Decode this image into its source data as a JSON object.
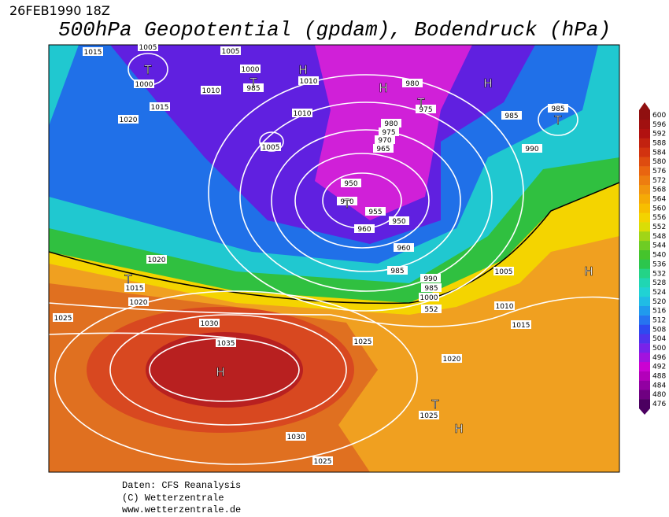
{
  "header": {
    "date": "26FEB1990 18Z",
    "title": "500hPa Geopotential (gpdam), Bodendruck (hPa)"
  },
  "legend": {
    "values": [
      476,
      480,
      484,
      488,
      492,
      496,
      500,
      504,
      508,
      512,
      516,
      520,
      524,
      528,
      532,
      536,
      540,
      544,
      548,
      552,
      556,
      560,
      564,
      568,
      572,
      576,
      580,
      584,
      588,
      592,
      596,
      600
    ]
  },
  "map": {
    "pressure_labels": [
      "1015",
      "1005",
      "1005",
      "1000",
      "1000",
      "985",
      "1010",
      "1010",
      "1015",
      "1020",
      "1010",
      "1005",
      "980",
      "975",
      "985",
      "985",
      "990",
      "980",
      "975",
      "970",
      "965",
      "950",
      "970",
      "955",
      "950",
      "960",
      "960",
      "985",
      "990",
      "985",
      "1000",
      "552",
      "1005",
      "1010",
      "1015",
      "1020",
      "1015",
      "1020",
      "1025",
      "1030",
      "1035",
      "1025",
      "1020",
      "1025",
      "1030",
      "1025"
    ],
    "centers": [
      "T",
      "T",
      "H",
      "H",
      "H",
      "T",
      "T",
      "T",
      "T",
      "H",
      "H",
      "T",
      "H"
    ]
  },
  "footer": {
    "lines": [
      "Daten: CFS Reanalysis",
      "(C) Wetterzentrale",
      "www.wetterzentrale.de"
    ]
  }
}
